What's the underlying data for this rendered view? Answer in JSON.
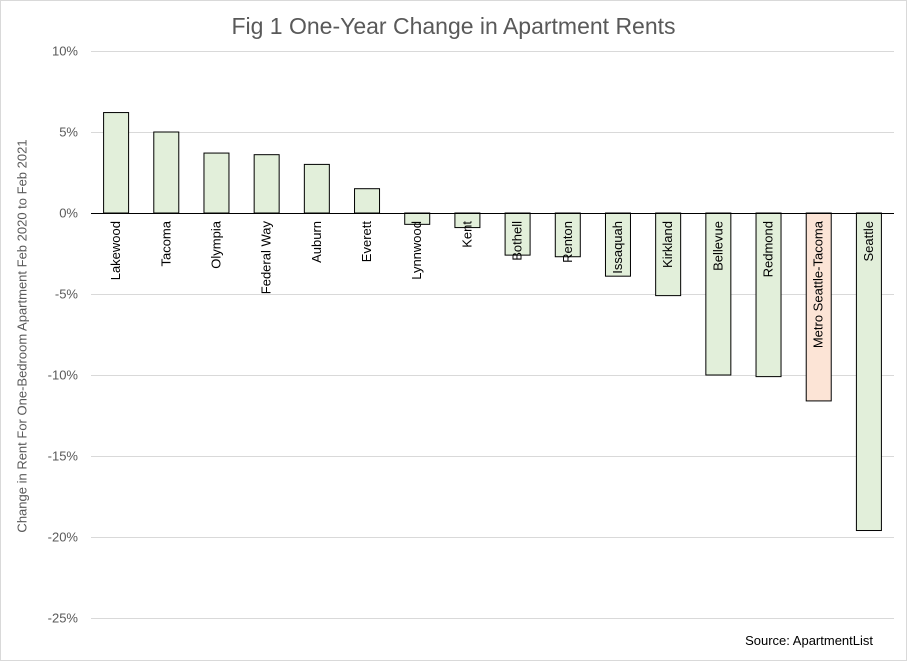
{
  "chart_data": {
    "type": "bar",
    "title": "Fig 1 One-Year Change in Apartment Rents",
    "xlabel": "",
    "ylabel": "Change in Rent For One-Bedroom  Apartment  Feb 2020 to Feb 2021",
    "ylim": [
      -25,
      10
    ],
    "yticks": [
      "10%",
      "5%",
      "0%",
      "-5%",
      "-10%",
      "-15%",
      "-20%",
      "-25%"
    ],
    "ytick_values": [
      10,
      5,
      0,
      -5,
      -10,
      -15,
      -20,
      -25
    ],
    "categories": [
      "Lakewood",
      "Tacoma",
      "Olympia",
      "Federal Way",
      "Auburn",
      "Everett",
      "Lynnwood",
      "Kent",
      "Bothell",
      "Renton",
      "Issaquah",
      "Kirkland",
      "Bellevue",
      "Redmond",
      "Metro Seattle-Tacoma",
      "Seattle"
    ],
    "values": [
      6.2,
      5.0,
      3.7,
      3.6,
      3.0,
      1.5,
      -0.7,
      -0.9,
      -2.6,
      -2.7,
      -3.9,
      -5.1,
      -10.0,
      -10.1,
      -11.6,
      -19.6
    ],
    "colors": {
      "bar_fill": "#e2efda",
      "highlight_fill": "#fce4d6",
      "bar_stroke": "#000000",
      "grid": "#d9d9d9"
    },
    "highlight_category": "Metro Seattle-Tacoma",
    "grid": true
  },
  "source_note": "Source: ApartmentList"
}
